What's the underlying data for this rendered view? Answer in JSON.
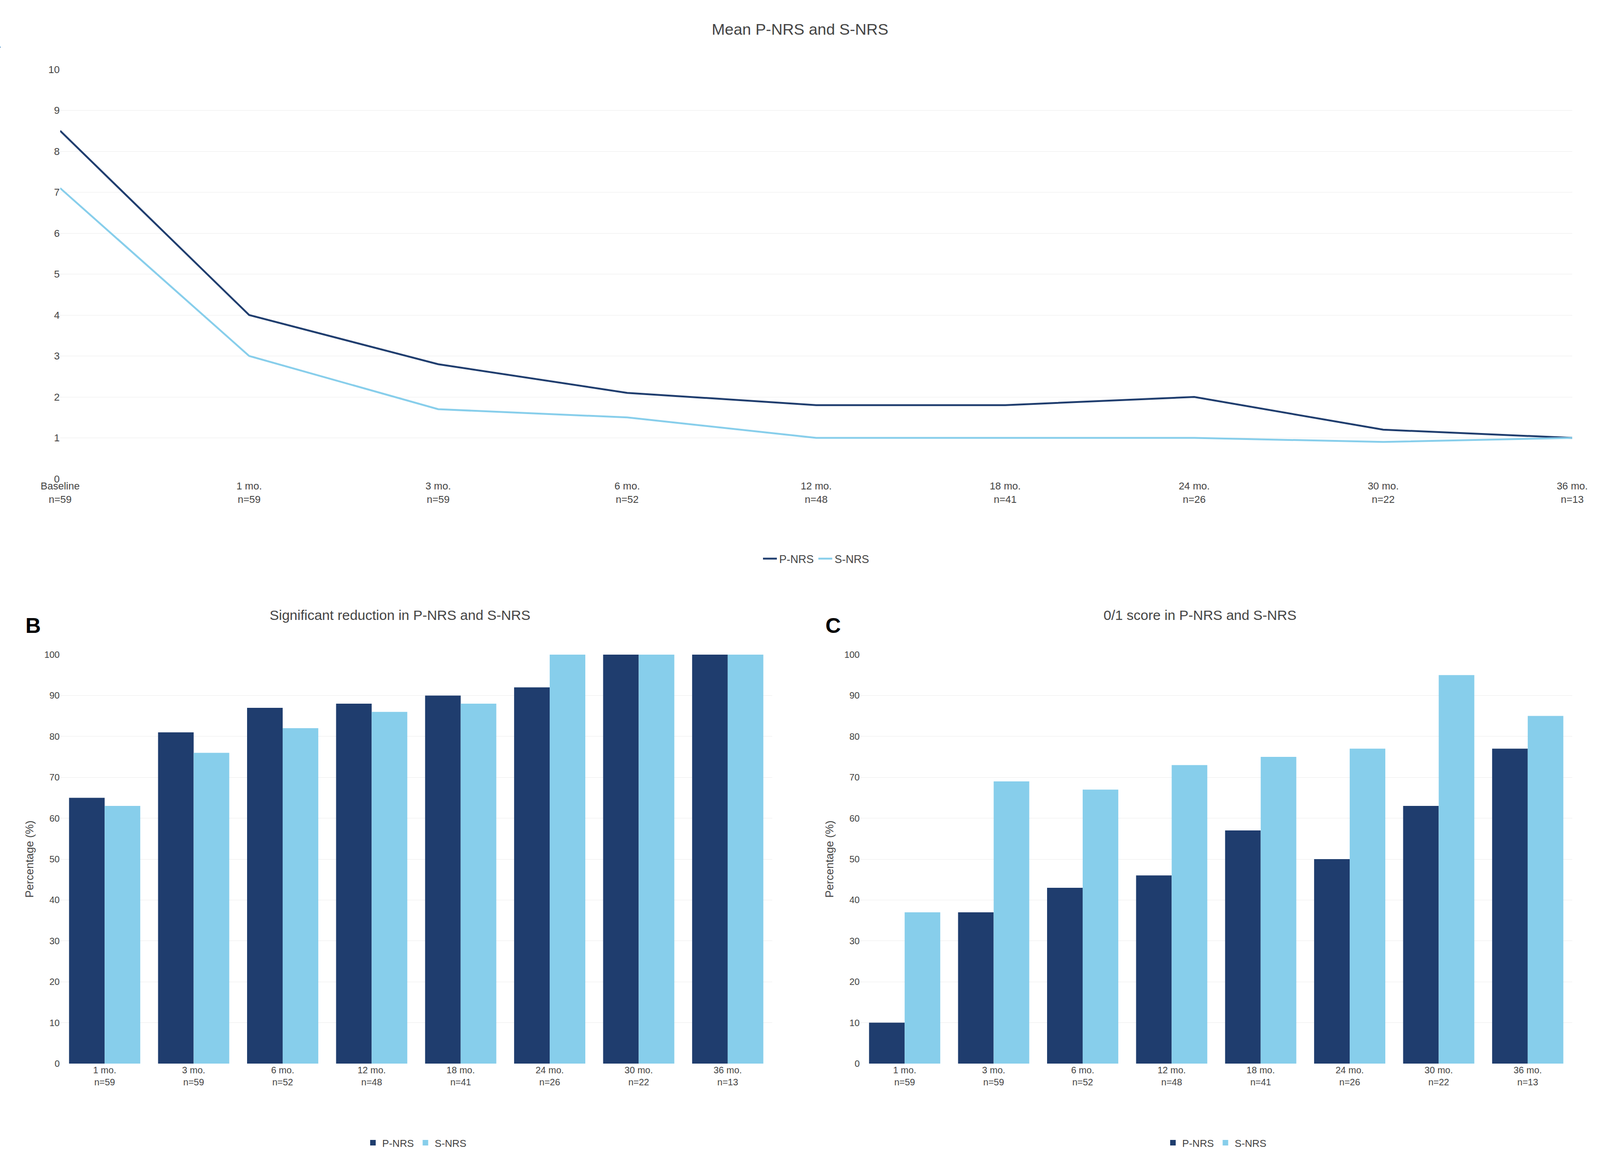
{
  "chart_data": [
    {
      "type": "line",
      "title": "Mean P-NRS and S-NRS",
      "annotations": [
        "A"
      ],
      "categories": [
        "Baseline\nn=59",
        "1 mo.\nn=59",
        "3 mo.\nn=59",
        "6 mo.\nn=52",
        "12 mo.\nn=48",
        "18 mo.\nn=41",
        "24 mo.\nn=26",
        "30 mo.\nn=22",
        "36 mo.\nn=13"
      ],
      "series": [
        {
          "name": "P-NRS",
          "color": "#1f3d6e",
          "values": [
            8.5,
            4.0,
            2.8,
            2.1,
            1.8,
            1.8,
            2.0,
            1.2,
            1.0
          ]
        },
        {
          "name": "S-NRS",
          "color": "#87ceeb",
          "values": [
            7.1,
            3.0,
            1.7,
            1.5,
            1.0,
            1.0,
            1.0,
            0.9,
            1.0
          ]
        }
      ],
      "ylim": [
        0,
        10
      ],
      "yticks": [
        0,
        1,
        2,
        3,
        4,
        5,
        6,
        7,
        8,
        9,
        10
      ],
      "grid": true,
      "legend": "bottom"
    },
    {
      "type": "bar",
      "title": "Significant reduction in P-NRS and S-NRS",
      "annotations": [
        "B"
      ],
      "y_label": "Percentage (%)",
      "categories": [
        "1 mo.\nn=59",
        "3 mo.\nn=59",
        "6 mo.\nn=52",
        "12 mo.\nn=48",
        "18 mo.\nn=41",
        "24 mo.\nn=26",
        "30 mo.\nn=22",
        "36 mo.\nn=13"
      ],
      "series": [
        {
          "name": "P-NRS",
          "color": "#1f3d6e",
          "values": [
            65,
            81,
            87,
            88,
            90,
            92,
            100,
            100
          ]
        },
        {
          "name": "S-NRS",
          "color": "#87ceeb",
          "values": [
            63,
            76,
            82,
            86,
            88,
            100,
            100,
            100
          ]
        }
      ],
      "ylim": [
        0,
        100
      ],
      "yticks": [
        0,
        10,
        20,
        30,
        40,
        50,
        60,
        70,
        80,
        90,
        100
      ],
      "grid": true,
      "legend": "bottom"
    },
    {
      "type": "bar",
      "title": "0/1 score in P-NRS and S-NRS",
      "annotations": [
        "C"
      ],
      "y_label": "Percentage (%)",
      "categories": [
        "1 mo.\nn=59",
        "3 mo.\nn=59",
        "6 mo.\nn=52",
        "12 mo.\nn=48",
        "18 mo.\nn=41",
        "24 mo.\nn=26",
        "30 mo.\nn=22",
        "36 mo.\nn=13"
      ],
      "series": [
        {
          "name": "P-NRS",
          "color": "#1f3d6e",
          "values": [
            10,
            37,
            43,
            46,
            57,
            50,
            63,
            77
          ]
        },
        {
          "name": "S-NRS",
          "color": "#87ceeb",
          "values": [
            37,
            69,
            67,
            73,
            75,
            77,
            95,
            85
          ]
        }
      ],
      "ylim": [
        0,
        100
      ],
      "yticks": [
        0,
        10,
        20,
        30,
        40,
        50,
        60,
        70,
        80,
        90,
        100
      ],
      "grid": true,
      "legend": "bottom"
    }
  ]
}
